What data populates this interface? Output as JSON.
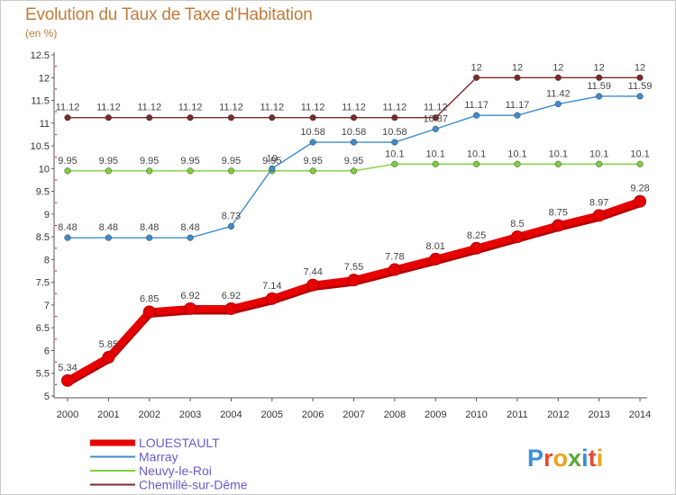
{
  "header": {
    "title": "Evolution du Taux de Taxe d'Habitation",
    "unit": "(en %)"
  },
  "logo": {
    "text": "Proxiti",
    "letters": [
      "P",
      "r",
      "o",
      "x",
      "i",
      "t",
      "i"
    ],
    "colors": [
      "#3a8fd8",
      "#e8492f",
      "#f1a21a",
      "#5aa832",
      "#3a8fd8",
      "#e8492f",
      "#f1a21a"
    ]
  },
  "chart_data": {
    "type": "line",
    "title": "Evolution du Taux de Taxe d'Habitation",
    "ylabel": "(en %)",
    "xlabel": "",
    "x": [
      "2000",
      "2001",
      "2002",
      "2003",
      "2004",
      "2005",
      "2006",
      "2007",
      "2008",
      "2009",
      "2010",
      "2011",
      "2012",
      "2013",
      "2014"
    ],
    "ylim": [
      5,
      12.5
    ],
    "yticks": [
      "5",
      "5.5",
      "6",
      "6.5",
      "7",
      "7.5",
      "8",
      "8.5",
      "9",
      "9.5",
      "10",
      "10.5",
      "11",
      "11.5",
      "12",
      "12.5"
    ],
    "grid": false,
    "legend_position": "bottom-left",
    "series": [
      {
        "name": "LOUESTAULT",
        "color": "#e60000",
        "values": [
          5.34,
          5.85,
          6.85,
          6.92,
          6.92,
          7.14,
          7.44,
          7.55,
          7.78,
          8.01,
          8.25,
          8.5,
          8.75,
          8.97,
          9.28
        ],
        "labels": [
          "5.34",
          "5.85",
          "6.85",
          "6.92",
          "6.92",
          "7.14",
          "7.44",
          "7.55",
          "7.78",
          "8.01",
          "8.25",
          "8.5",
          "8.75",
          "8.97",
          "9.28"
        ]
      },
      {
        "name": "Marray",
        "color": "#3d8ccc",
        "values": [
          8.48,
          8.48,
          8.48,
          8.48,
          8.73,
          10,
          10.58,
          10.58,
          10.58,
          10.87,
          11.17,
          11.17,
          11.42,
          11.59,
          11.59
        ],
        "labels": [
          "8.48",
          "8.48",
          "8.48",
          "8.48",
          "8.73",
          "10",
          "10.58",
          "10.58",
          "10.58",
          "10.87",
          "11.17",
          "11.17",
          "11.42",
          "11.59",
          "11.59"
        ]
      },
      {
        "name": "Neuvy-le-Roi",
        "color": "#7fd13b",
        "values": [
          9.95,
          9.95,
          9.95,
          9.95,
          9.95,
          9.95,
          9.95,
          9.95,
          10.1,
          10.1,
          10.1,
          10.1,
          10.1,
          10.1,
          10.1
        ],
        "labels": [
          "9.95",
          "9.95",
          "9.95",
          "9.95",
          "9.95",
          "9.95",
          "9.95",
          "9.95",
          "10.1",
          "10.1",
          "10.1",
          "10.1",
          "10.1",
          "10.1",
          "10.1"
        ]
      },
      {
        "name": "Chemillé-sur-Dême",
        "color": "#7b2a2a",
        "values": [
          11.12,
          11.12,
          11.12,
          11.12,
          11.12,
          11.12,
          11.12,
          11.12,
          11.12,
          11.12,
          12,
          12,
          12,
          12,
          12
        ],
        "labels": [
          "11.12",
          "11.12",
          "11.12",
          "11.12",
          "11.12",
          "11.12",
          "11.12",
          "11.12",
          "11.12",
          "11.12",
          "12",
          "12",
          "12",
          "12",
          "12"
        ]
      }
    ]
  }
}
